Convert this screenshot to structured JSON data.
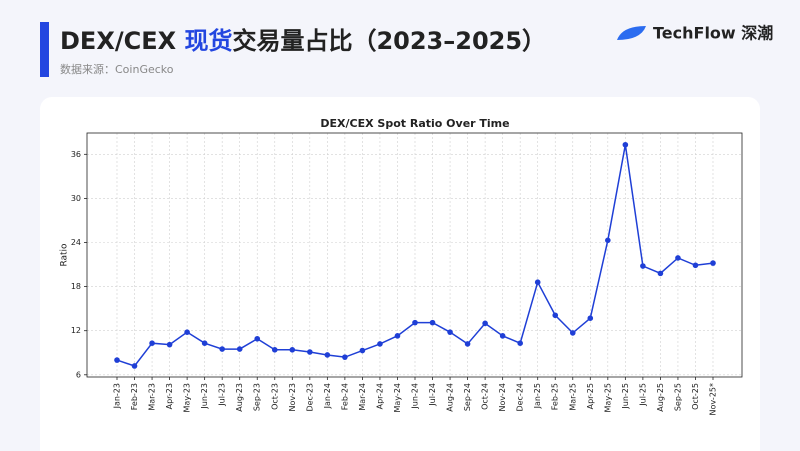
{
  "header": {
    "title_prefix": "DEX/CEX ",
    "title_highlight": "现货",
    "title_suffix": "交易量占比（2023–2025）",
    "subtitle": "数据来源：CoinGecko",
    "logo_text": "TechFlow 深潮"
  },
  "chart_data": {
    "type": "line",
    "title": "DEX/CEX Spot Ratio Over Time",
    "ylabel": "Ratio",
    "categories": [
      "Jan-23",
      "Feb-23",
      "Mar-23",
      "Apr-23",
      "May-23",
      "Jun-23",
      "Jul-23",
      "Aug-23",
      "Sep-23",
      "Oct-23",
      "Nov-23",
      "Dec-23",
      "Jan-24",
      "Feb-24",
      "Mar-24",
      "Apr-24",
      "May-24",
      "Jun-24",
      "Jul-24",
      "Aug-24",
      "Sep-24",
      "Oct-24",
      "Nov-24",
      "Dec-24",
      "Jan-25",
      "Feb-25",
      "Mar-25",
      "Apr-25",
      "May-25",
      "Jun-25",
      "Jul-25",
      "Aug-25",
      "Sep-25",
      "Oct-25",
      "Nov-25*"
    ],
    "series": [
      {
        "name": "Ratio",
        "color": "#1f3fd6",
        "values": [
          8.0,
          7.2,
          10.3,
          10.1,
          11.8,
          10.3,
          9.5,
          9.5,
          10.9,
          9.4,
          9.4,
          9.1,
          8.7,
          8.4,
          9.3,
          10.2,
          11.3,
          13.1,
          13.1,
          11.8,
          10.2,
          13.0,
          11.3,
          10.3,
          18.6,
          14.1,
          11.7,
          13.7,
          24.3,
          37.3,
          20.8,
          19.8,
          21.9,
          20.9,
          21.2
        ]
      }
    ],
    "ylim": [
      5.7,
      38.9
    ],
    "yticks": [
      6,
      12,
      18,
      24,
      30,
      36
    ],
    "grid": true
  }
}
